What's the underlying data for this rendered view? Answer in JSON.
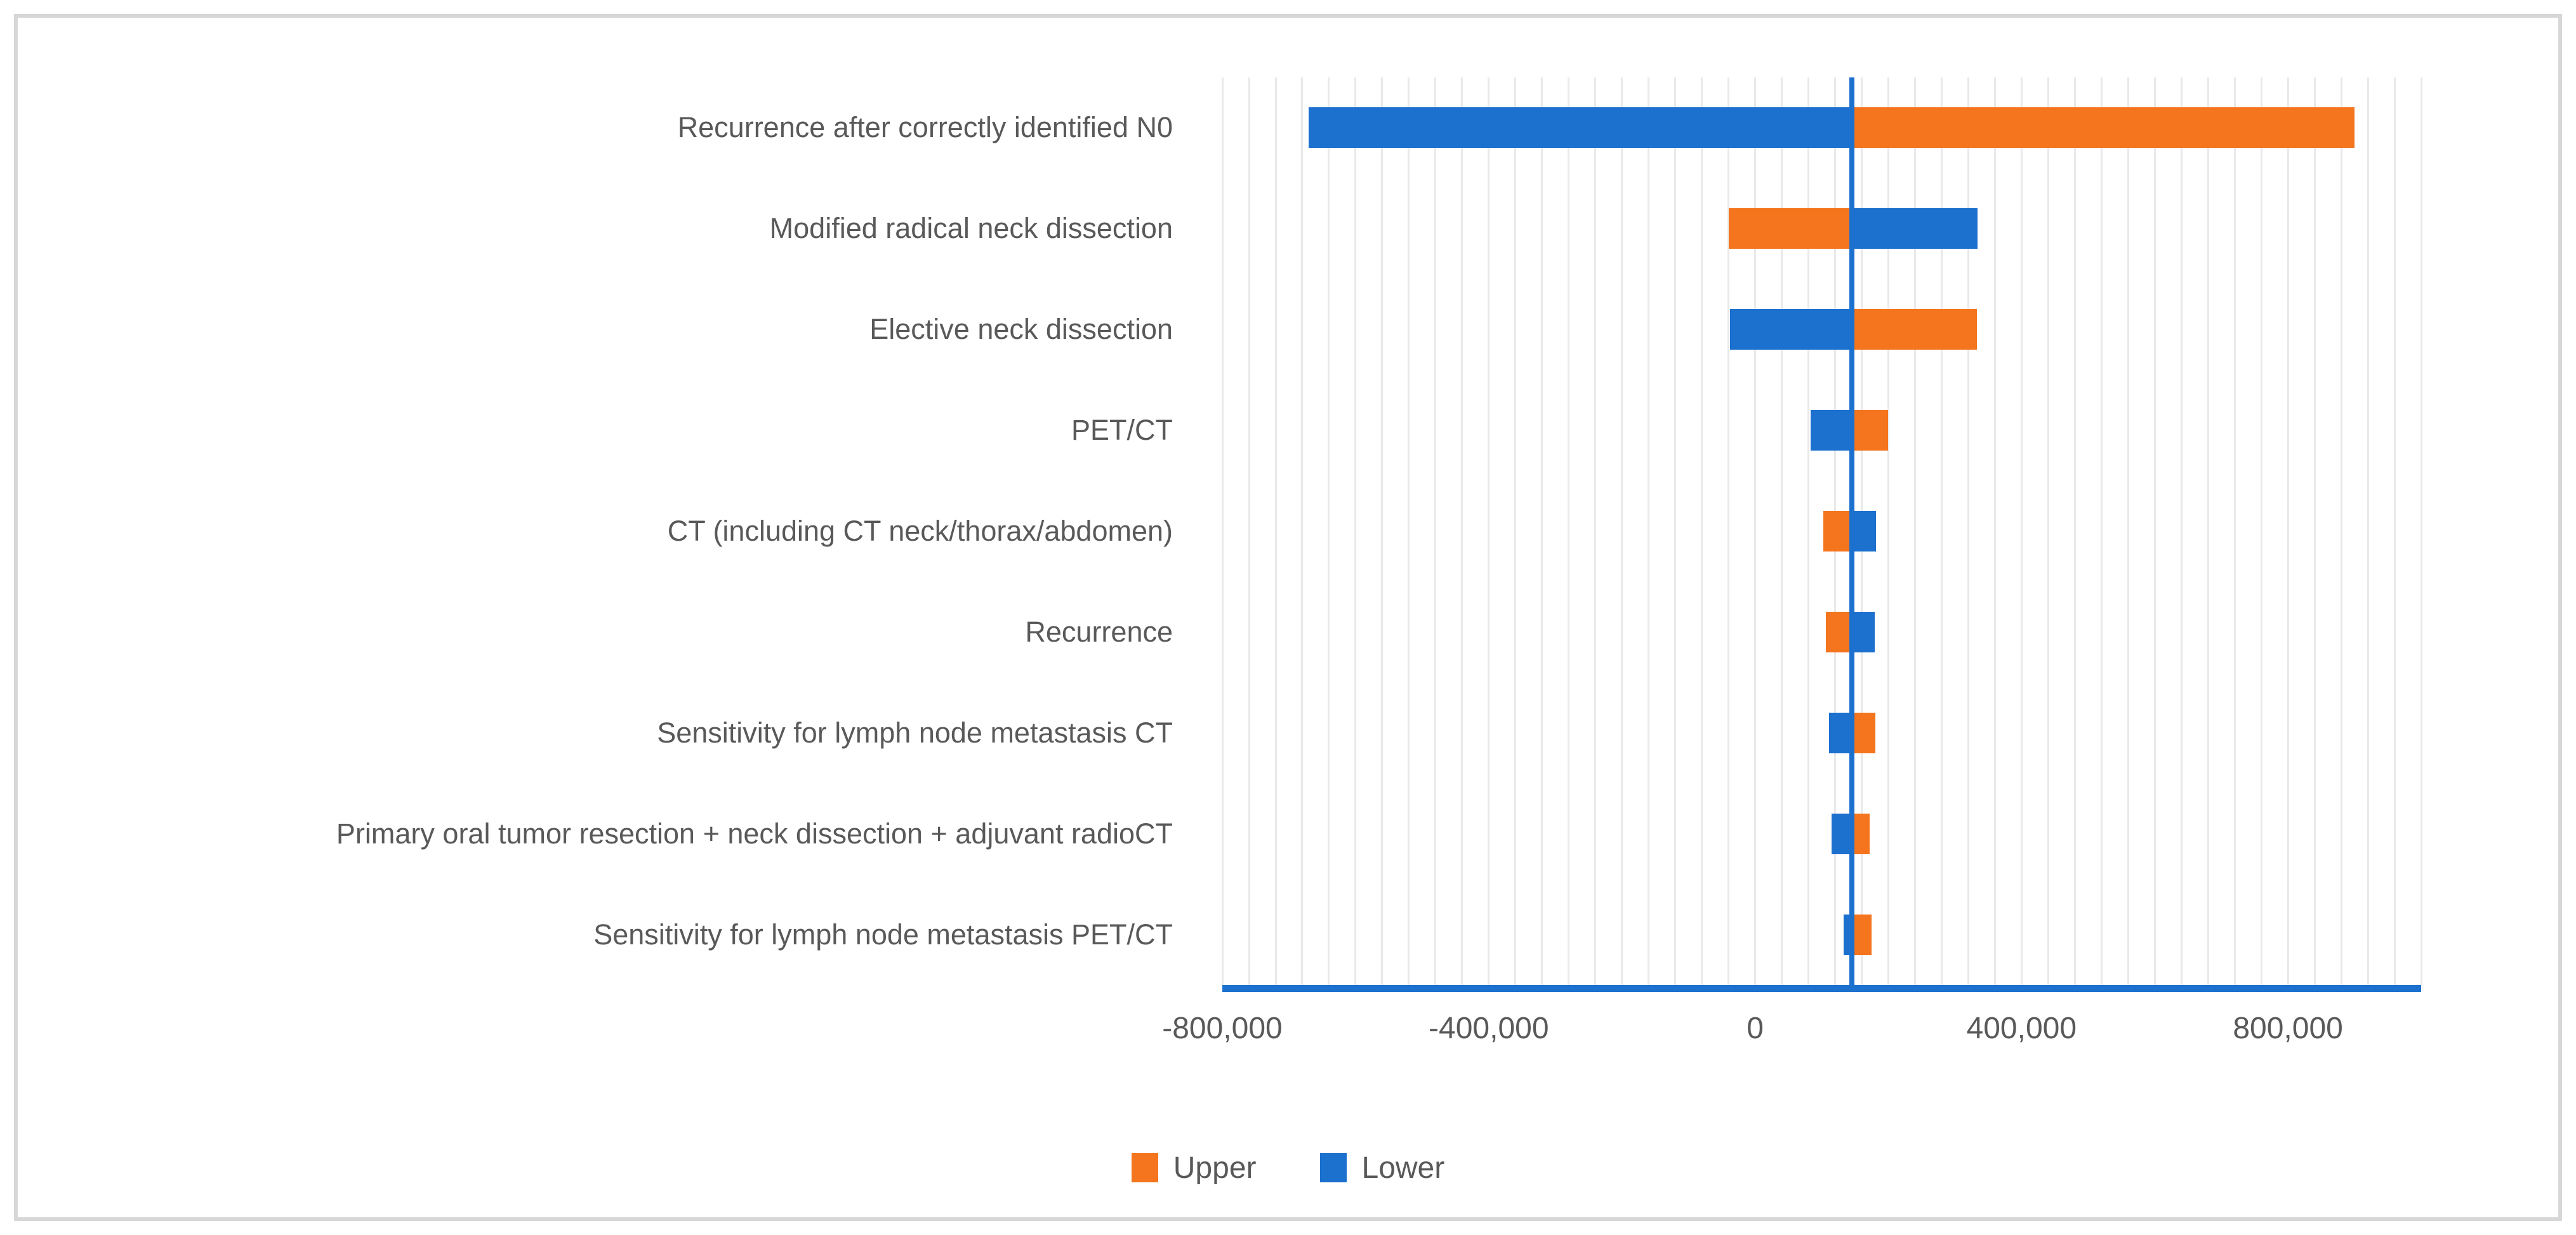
{
  "figure": {
    "background": "#ffffff",
    "border_color": "#d7d7d7"
  },
  "chart_data": {
    "type": "bar",
    "subtype": "tornado-horizontal",
    "title": "",
    "xlabel": "",
    "ylabel": "",
    "categories": [
      "Recurrence after correctly identified N0",
      "Modified radical neck dissection",
      "Elective neck dissection",
      "PET/CT",
      "CT (including CT neck/thorax/abdomen)",
      "Recurrence",
      "Sensitivity for lymph node metastasis CT",
      "Primary oral tumor resection + neck dissection + adjuvant radioCT",
      "Sensitivity for lymph node metastasis PET/CT"
    ],
    "baseline": 145000,
    "series": [
      {
        "name": "Upper",
        "color": "#f4751d",
        "values": [
          900000,
          -40000,
          333000,
          200000,
          102000,
          106000,
          181000,
          172000,
          175000
        ]
      },
      {
        "name": "Lower",
        "color": "#1c70ce",
        "values": [
          -670000,
          334000,
          -38000,
          83000,
          182000,
          180000,
          111000,
          115000,
          133000
        ]
      }
    ],
    "xlim": [
      -800000,
      1000000
    ],
    "x_major_tick": 400000,
    "x_minor_grid": 40000,
    "x_tick_labels": [
      "-800,000",
      "-400,000",
      "0",
      "400,000",
      "800,000"
    ],
    "x_tick_values": [
      -800000,
      -400000,
      0,
      400000,
      800000
    ],
    "grid": "minor-vertical-on",
    "legend_position": "bottom-center",
    "legend": [
      {
        "label": "Upper",
        "color": "#f4751d"
      },
      {
        "label": "Lower",
        "color": "#1c70ce"
      }
    ],
    "axis_line_color": "#1c70ce",
    "gridline_color": "#e9e9e9",
    "text_color": "#595959"
  }
}
